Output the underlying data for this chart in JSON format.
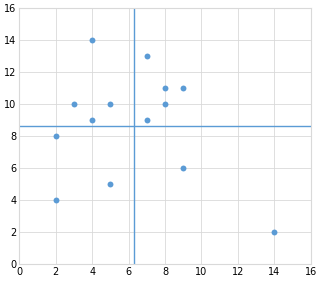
{
  "points": [
    [
      2,
      8
    ],
    [
      2,
      4
    ],
    [
      3,
      10
    ],
    [
      4,
      14
    ],
    [
      4,
      9
    ],
    [
      5,
      10
    ],
    [
      5,
      5
    ],
    [
      7,
      13
    ],
    [
      7,
      9
    ],
    [
      8,
      11
    ],
    [
      8,
      10
    ],
    [
      9,
      11
    ],
    [
      9,
      6
    ],
    [
      14,
      2
    ]
  ],
  "dot_color": "#5B9BD5",
  "dot_size": 18,
  "vline_x": 6.3,
  "hline_y": 8.65,
  "line_color": "#5B9BD5",
  "line_width": 1.0,
  "xlim": [
    0,
    16
  ],
  "ylim": [
    0,
    16
  ],
  "xticks": [
    0,
    2,
    4,
    6,
    8,
    10,
    12,
    14,
    16
  ],
  "yticks": [
    0,
    2,
    4,
    6,
    8,
    10,
    12,
    14,
    16
  ],
  "grid_color": "#D9D9D9",
  "plot_bg_color": "#FFFFFF",
  "fig_bg_color": "#FFFFFF",
  "tick_fontsize": 7,
  "spine_color": "#D9D9D9"
}
